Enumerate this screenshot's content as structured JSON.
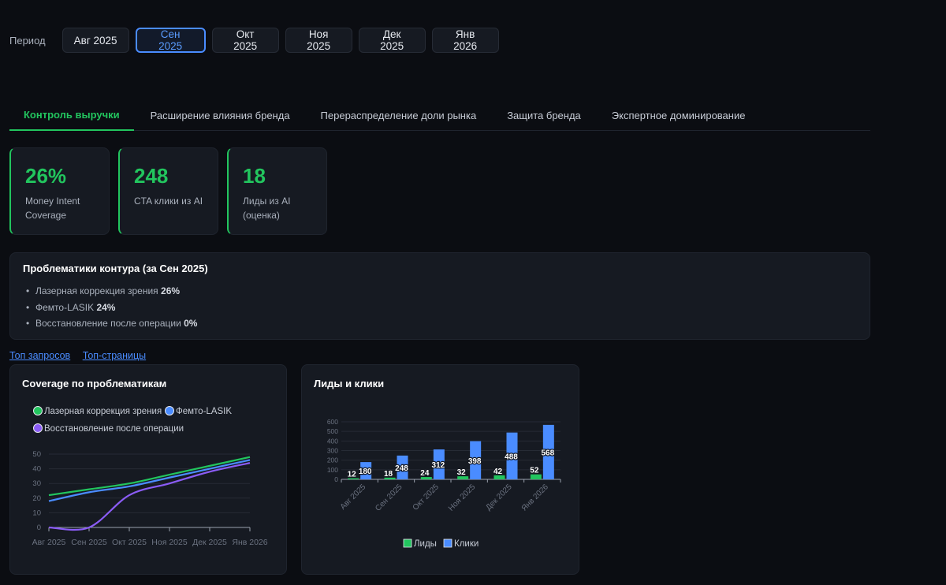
{
  "period": {
    "label": "Период",
    "options": [
      "Авг 2025",
      "Сен 2025",
      "Окт 2025",
      "Ноя 2025",
      "Дек 2025",
      "Янв 2026"
    ],
    "selected": "Сен 2025"
  },
  "tabs": [
    {
      "label": "Контроль выручки",
      "active": true
    },
    {
      "label": "Расширение влияния бренда",
      "active": false
    },
    {
      "label": "Перераспределение доли рынка",
      "active": false
    },
    {
      "label": "Защита бренда",
      "active": false
    },
    {
      "label": "Экспертное доминирование",
      "active": false
    }
  ],
  "kpis": [
    {
      "value": "26%",
      "label": "Money Intent Coverage"
    },
    {
      "value": "248",
      "label": "CTA клики из AI"
    },
    {
      "value": "18",
      "label": "Лиды из AI (оценка)"
    }
  ],
  "issues": {
    "title": "Проблематики контура (за Сен 2025)",
    "items": [
      {
        "label": "Лазерная коррекция зрения",
        "value": "26%"
      },
      {
        "label": "Фемто-LASIK",
        "value": "24%"
      },
      {
        "label": "Восстановление после операции",
        "value": "0%"
      }
    ]
  },
  "links": {
    "queries": "Топ запросов",
    "pages": "Топ-страницы"
  },
  "colors": {
    "accent_green": "#22c55e",
    "accent_blue": "#4a8cff",
    "purple": "#8b5cf6",
    "background": "#0b0d12",
    "card": "#161a22"
  },
  "chart_data": [
    {
      "type": "line",
      "title": "Coverage по проблематикам",
      "x": [
        "Авг 2025",
        "Сен 2025",
        "Окт 2025",
        "Ноя 2025",
        "Дек 2025",
        "Янв 2026"
      ],
      "ylim": [
        0,
        50
      ],
      "yticks": [
        0,
        10,
        20,
        30,
        40,
        50
      ],
      "grid": true,
      "legend_position": "top-left",
      "series": [
        {
          "name": "Лазерная коррекция зрения",
          "color": "#22c55e",
          "values": [
            22,
            26,
            30,
            36,
            42,
            48
          ]
        },
        {
          "name": "Фемто-LASIK",
          "color": "#4a8cff",
          "values": [
            18,
            24,
            28,
            34,
            40,
            46
          ]
        },
        {
          "name": "Восстановление после операции",
          "color": "#8b5cf6",
          "values": [
            0,
            0,
            22,
            30,
            38,
            44
          ]
        }
      ]
    },
    {
      "type": "bar",
      "title": "Лиды и клики",
      "categories": [
        "Авг 2025",
        "Сен 2025",
        "Окт 2025",
        "Ноя 2025",
        "Дек 2025",
        "Янв 2026"
      ],
      "ylim": [
        0,
        600
      ],
      "yticks": [
        0,
        100,
        200,
        300,
        400,
        500,
        600
      ],
      "grid": true,
      "legend_position": "bottom-center",
      "series": [
        {
          "name": "Лиды",
          "color": "#22c55e",
          "values": [
            12,
            18,
            24,
            32,
            42,
            52
          ]
        },
        {
          "name": "Клики",
          "color": "#4a8cff",
          "values": [
            180,
            248,
            312,
            398,
            488,
            568
          ]
        }
      ]
    }
  ]
}
